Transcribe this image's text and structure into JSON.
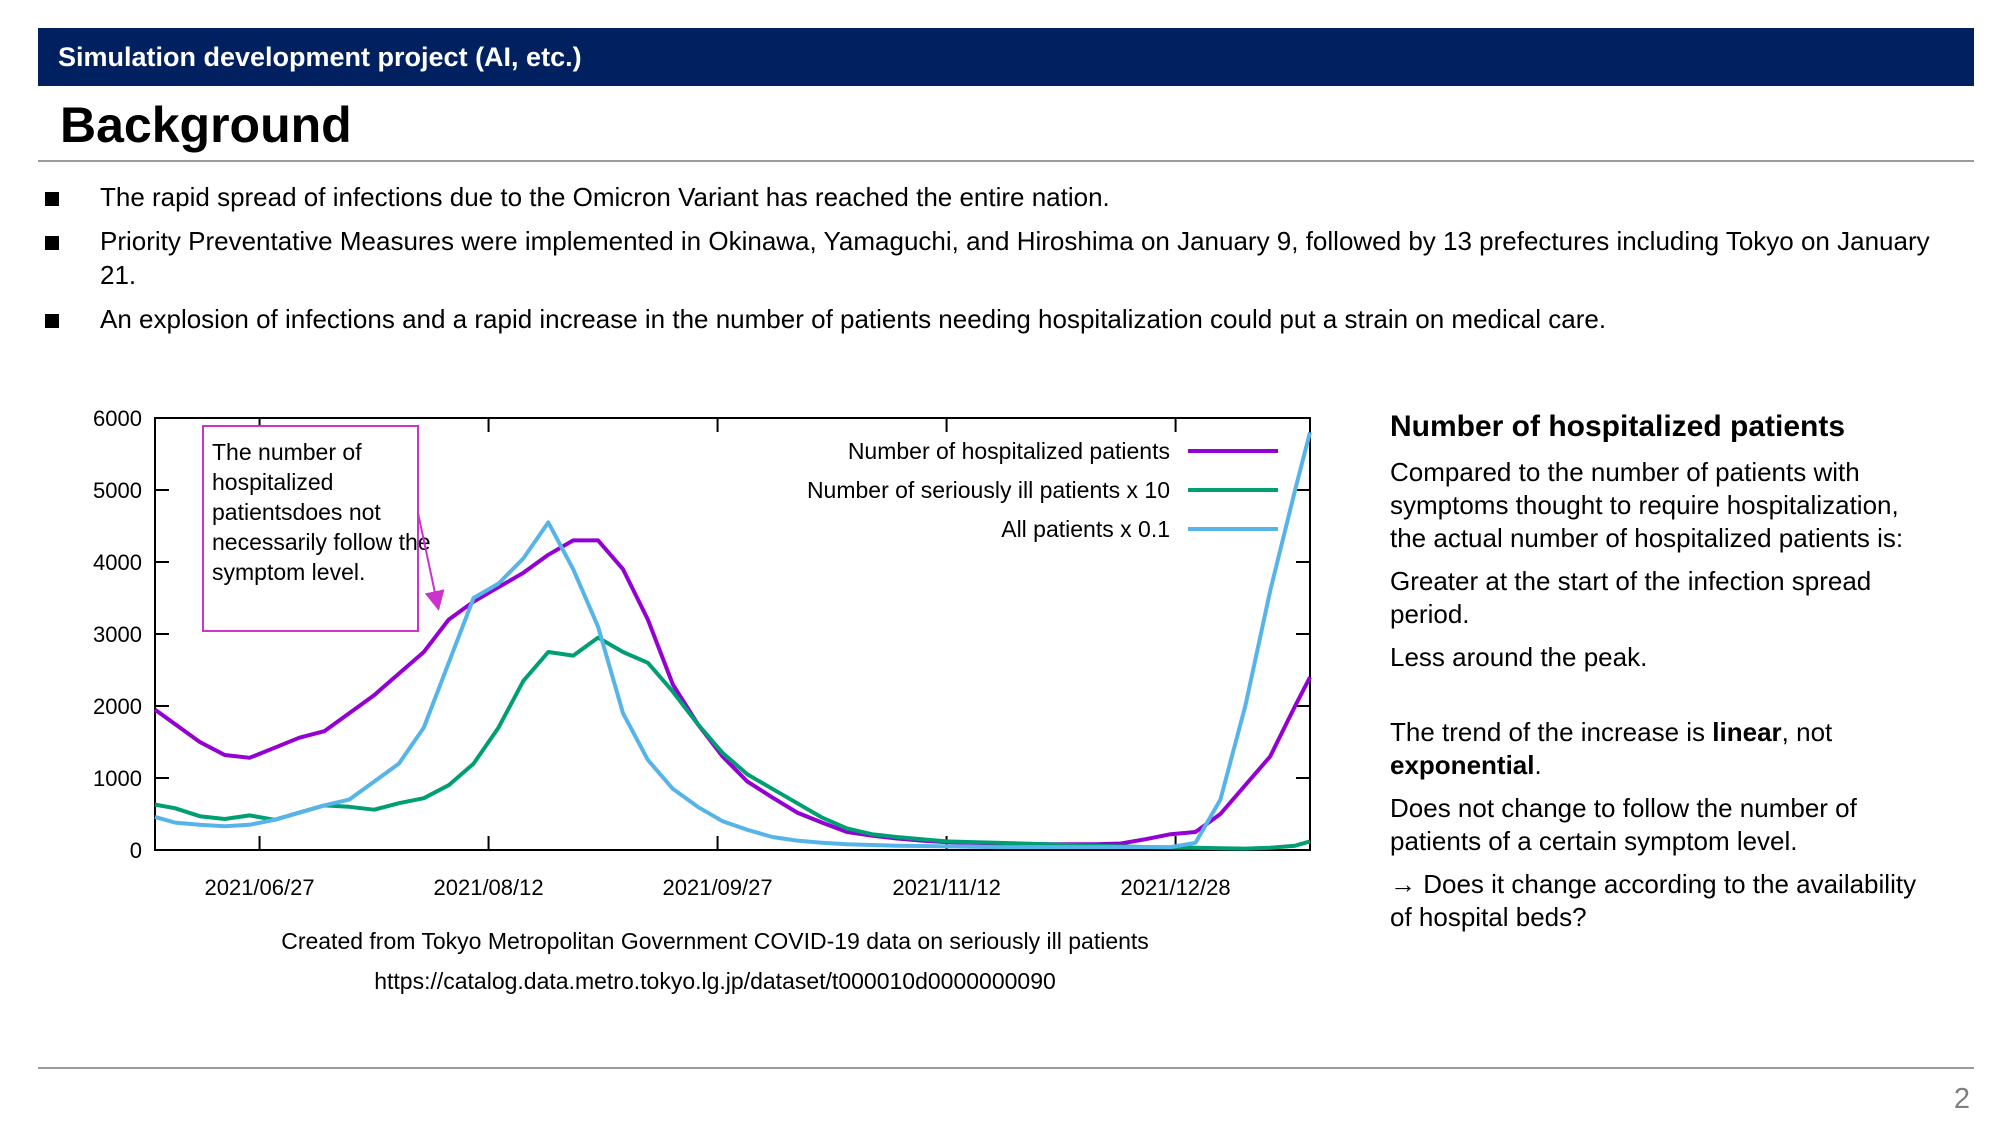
{
  "header": {
    "banner_text": "Simulation development project (AI, etc.)",
    "title": "Background",
    "banner_color": "#002060"
  },
  "bullets": [
    "The rapid spread of infections due to the Omicron Variant has reached the entire nation.",
    "Priority Preventative Measures were implemented in Okinawa, Yamaguchi, and Hiroshima on January 9, followed by 13 prefectures including Tokyo on January 21.",
    "An explosion of infections and a rapid increase in the number of patients needing hospitalization could put a strain on medical care."
  ],
  "chart_data": {
    "type": "line",
    "ylim": [
      0,
      6000
    ],
    "yticks": [
      "0",
      "1000",
      "2000",
      "3000",
      "4000",
      "5000",
      "6000"
    ],
    "xlim": [
      "2021-06-06",
      "2022-01-24"
    ],
    "xticks": [
      "2021/06/27",
      "2021/08/12",
      "2021/09/27",
      "2021/11/12",
      "2021/12/28"
    ],
    "legend_position": "top-right",
    "grid": false,
    "annotation": "The number of hospitalized patientsdoes not necessarily follow the symptom level.",
    "series": [
      {
        "name": "Number of hospitalized patients",
        "color": "#9400d3",
        "x": [
          "2021-06-06",
          "2021-06-10",
          "2021-06-15",
          "2021-06-20",
          "2021-06-25",
          "2021-06-30",
          "2021-07-05",
          "2021-07-10",
          "2021-07-15",
          "2021-07-20",
          "2021-07-25",
          "2021-07-30",
          "2021-08-04",
          "2021-08-09",
          "2021-08-14",
          "2021-08-19",
          "2021-08-24",
          "2021-08-29",
          "2021-09-03",
          "2021-09-08",
          "2021-09-13",
          "2021-09-18",
          "2021-09-23",
          "2021-09-28",
          "2021-10-03",
          "2021-10-08",
          "2021-10-13",
          "2021-10-18",
          "2021-10-23",
          "2021-10-28",
          "2021-11-02",
          "2021-11-07",
          "2021-11-12",
          "2021-11-17",
          "2021-11-22",
          "2021-11-27",
          "2021-12-02",
          "2021-12-07",
          "2021-12-12",
          "2021-12-17",
          "2021-12-22",
          "2021-12-27",
          "2022-01-01",
          "2022-01-06",
          "2022-01-11",
          "2022-01-16",
          "2022-01-21",
          "2022-01-24"
        ],
        "y": [
          1950,
          1750,
          1500,
          1320,
          1280,
          1420,
          1560,
          1650,
          1900,
          2150,
          2450,
          2750,
          3200,
          3450,
          3650,
          3850,
          4100,
          4300,
          4300,
          3900,
          3200,
          2300,
          1750,
          1300,
          950,
          730,
          520,
          380,
          250,
          200,
          160,
          130,
          110,
          100,
          90,
          85,
          80,
          80,
          80,
          90,
          150,
          220,
          250,
          500,
          900,
          1300,
          2000,
          2400
        ]
      },
      {
        "name": "Number of seriously ill patients x 10",
        "color": "#009e73",
        "x": [
          "2021-06-06",
          "2021-06-10",
          "2021-06-15",
          "2021-06-20",
          "2021-06-25",
          "2021-06-30",
          "2021-07-05",
          "2021-07-10",
          "2021-07-15",
          "2021-07-20",
          "2021-07-25",
          "2021-07-30",
          "2021-08-04",
          "2021-08-09",
          "2021-08-14",
          "2021-08-19",
          "2021-08-24",
          "2021-08-29",
          "2021-09-03",
          "2021-09-08",
          "2021-09-13",
          "2021-09-18",
          "2021-09-23",
          "2021-09-28",
          "2021-10-03",
          "2021-10-08",
          "2021-10-13",
          "2021-10-18",
          "2021-10-23",
          "2021-10-28",
          "2021-11-02",
          "2021-11-07",
          "2021-11-12",
          "2021-11-17",
          "2021-11-22",
          "2021-11-27",
          "2021-12-02",
          "2021-12-07",
          "2021-12-12",
          "2021-12-17",
          "2021-12-22",
          "2021-12-27",
          "2022-01-01",
          "2022-01-06",
          "2022-01-11",
          "2022-01-16",
          "2022-01-21",
          "2022-01-24"
        ],
        "y": [
          630,
          580,
          470,
          430,
          480,
          420,
          520,
          620,
          600,
          560,
          650,
          720,
          900,
          1200,
          1700,
          2350,
          2750,
          2700,
          2950,
          2750,
          2600,
          2200,
          1750,
          1350,
          1050,
          850,
          650,
          450,
          300,
          220,
          180,
          150,
          120,
          110,
          100,
          90,
          80,
          70,
          60,
          50,
          40,
          35,
          30,
          25,
          20,
          30,
          60,
          120
        ]
      },
      {
        "name": "All patients x 0.1",
        "color": "#56b4e9",
        "x": [
          "2021-06-06",
          "2021-06-10",
          "2021-06-15",
          "2021-06-20",
          "2021-06-25",
          "2021-06-30",
          "2021-07-05",
          "2021-07-10",
          "2021-07-15",
          "2021-07-20",
          "2021-07-25",
          "2021-07-30",
          "2021-08-04",
          "2021-08-09",
          "2021-08-14",
          "2021-08-19",
          "2021-08-24",
          "2021-08-29",
          "2021-09-03",
          "2021-09-08",
          "2021-09-13",
          "2021-09-18",
          "2021-09-23",
          "2021-09-28",
          "2021-10-03",
          "2021-10-08",
          "2021-10-13",
          "2021-10-18",
          "2021-10-23",
          "2021-10-28",
          "2021-11-02",
          "2021-11-07",
          "2021-11-12",
          "2021-11-17",
          "2021-11-22",
          "2021-11-27",
          "2021-12-02",
          "2021-12-07",
          "2021-12-12",
          "2021-12-17",
          "2021-12-22",
          "2021-12-27",
          "2022-01-01",
          "2022-01-06",
          "2022-01-11",
          "2022-01-16",
          "2022-01-21",
          "2022-01-24"
        ],
        "y": [
          460,
          380,
          350,
          330,
          350,
          420,
          520,
          620,
          700,
          950,
          1200,
          1700,
          2600,
          3500,
          3700,
          4050,
          4550,
          3900,
          3100,
          1900,
          1250,
          850,
          600,
          400,
          280,
          180,
          130,
          100,
          80,
          70,
          60,
          55,
          50,
          45,
          40,
          40,
          40,
          40,
          40,
          40,
          40,
          40,
          100,
          700,
          2000,
          3600,
          5000,
          5800
        ]
      }
    ]
  },
  "chart_caption": {
    "line1": "Created from Tokyo Metropolitan Government COVID-19 data on seriously ill patients",
    "line2": "https://catalog.data.metro.tokyo.lg.jp/dataset/t000010d0000000090"
  },
  "sidebar": {
    "heading": "Number of hospitalized patients",
    "p1": "Compared to the number of patients with symptoms thought to require hospitalization, the actual number of hospitalized patients is:",
    "p2": "Greater at the start of the infection spread period.",
    "p3": "Less around the peak.",
    "p4_a": "The trend of the increase is ",
    "p4_b": "linear",
    "p4_c": ", not ",
    "p4_d": "exponential",
    "p4_e": ".",
    "p5": "Does not change to follow the number of patients of a certain symptom level.",
    "p6": "→ Does it change according to the availability of hospital beds?"
  },
  "footer": {
    "page_number": "2"
  }
}
